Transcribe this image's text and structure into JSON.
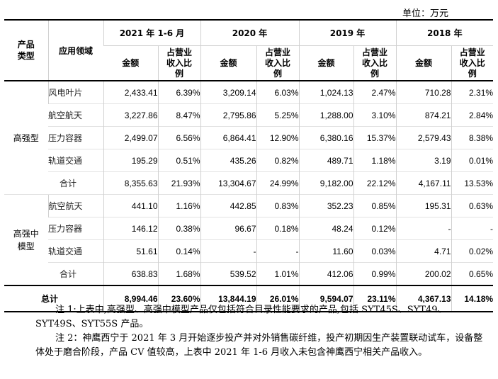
{
  "unit": "单位：万元",
  "headers": {
    "category": "产品类型",
    "application": "应用领域",
    "periods": [
      "2021 年 1-6 月",
      "2020 年",
      "2019 年",
      "2018 年"
    ],
    "amount": "金额",
    "ratio": "占营业收入比例"
  },
  "groups": [
    {
      "category": "高强型",
      "rows": [
        {
          "app": "风电叶片",
          "values": [
            "2,433.41",
            "6.39%",
            "3,209.14",
            "6.03%",
            "1,024.13",
            "2.47%",
            "710.28",
            "2.31%"
          ]
        },
        {
          "app": "航空航天",
          "values": [
            "3,227.86",
            "8.47%",
            "2,795.86",
            "5.25%",
            "1,288.00",
            "3.10%",
            "874.21",
            "2.84%"
          ]
        },
        {
          "app": "压力容器",
          "values": [
            "2,499.07",
            "6.56%",
            "6,864.41",
            "12.90%",
            "6,380.16",
            "15.37%",
            "2,579.43",
            "8.38%"
          ]
        },
        {
          "app": "轨道交通",
          "values": [
            "195.29",
            "0.51%",
            "435.26",
            "0.82%",
            "489.71",
            "1.18%",
            "3.19",
            "0.01%"
          ]
        },
        {
          "app": "合计",
          "values": [
            "8,355.63",
            "21.93%",
            "13,304.67",
            "24.99%",
            "9,182.00",
            "22.12%",
            "4,167.11",
            "13.53%"
          ]
        }
      ]
    },
    {
      "category": "高强中模型",
      "rows": [
        {
          "app": "航空航天",
          "values": [
            "441.10",
            "1.16%",
            "442.85",
            "0.83%",
            "352.23",
            "0.85%",
            "195.31",
            "0.63%"
          ]
        },
        {
          "app": "压力容器",
          "values": [
            "146.12",
            "0.38%",
            "96.67",
            "0.18%",
            "48.24",
            "0.12%",
            "-",
            "-"
          ]
        },
        {
          "app": "轨道交通",
          "values": [
            "51.61",
            "0.14%",
            "-",
            "-",
            "11.60",
            "0.03%",
            "4.71",
            "0.02%"
          ]
        },
        {
          "app": "合计",
          "values": [
            "638.83",
            "1.68%",
            "539.52",
            "1.01%",
            "412.06",
            "0.99%",
            "200.02",
            "0.65%"
          ]
        }
      ]
    }
  ],
  "total": {
    "label": "总计",
    "values": [
      "8,994.46",
      "23.60%",
      "13,844.19",
      "26.01%",
      "9,594.07",
      "23.11%",
      "4,367.13",
      "14.18%"
    ]
  },
  "notes": [
    "注 1:上表中,高强型、高强中模型产品仅包括符合目录性能要求的产品,包括 SYT45S、SYT49、SYT49S、SYT55S 产品。",
    "注 2：神鹰西宁于 2021 年 3 月开始逐步投产并对外销售碳纤维，投产初期因生产装置联动试车，设备整体处于磨合阶段，产品 CV 值较高，上表中 2021 年 1-6 月收入未包含神鹰西宁相关产品收入。"
  ]
}
